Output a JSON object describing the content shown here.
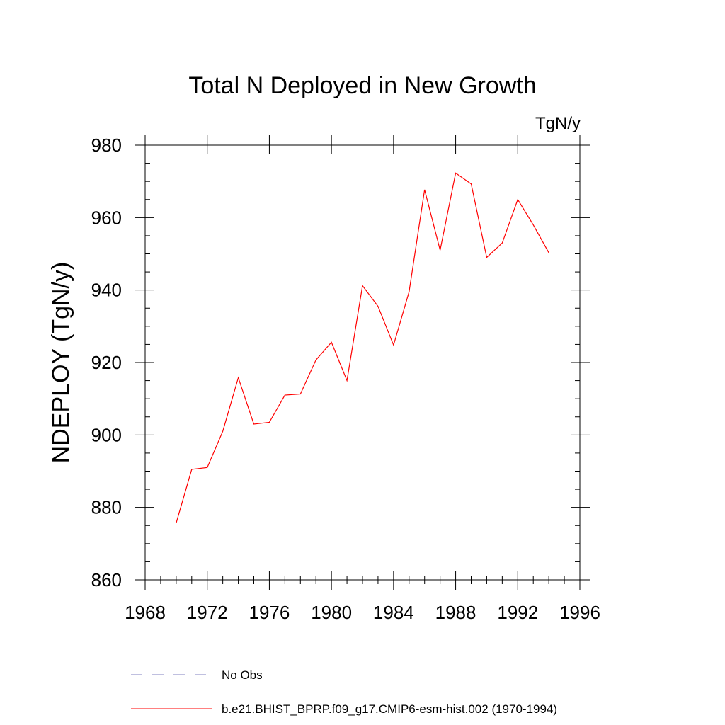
{
  "chart_data": {
    "type": "line",
    "title": "Total N Deployed in New Growth",
    "units": "TgN/y",
    "xlabel": "",
    "ylabel": "NDEPLOY  (TgN/y)",
    "xlim": [
      1968,
      1996
    ],
    "ylim": [
      860,
      980
    ],
    "xticks": [
      1968,
      1972,
      1976,
      1980,
      1984,
      1988,
      1992,
      1996
    ],
    "yticks": [
      860,
      880,
      900,
      920,
      940,
      960,
      980
    ],
    "series": [
      {
        "name": "b.e21.BHIST_BPRP.f09_g17.CMIP6-esm-hist.002 (1970-1994)",
        "color": "#ff0000",
        "dash": "solid",
        "x": [
          1970,
          1971,
          1972,
          1973,
          1974,
          1975,
          1976,
          1977,
          1978,
          1979,
          1980,
          1981,
          1982,
          1983,
          1984,
          1985,
          1986,
          1987,
          1988,
          1989,
          1990,
          1991,
          1992,
          1993,
          1994
        ],
        "y": [
          875.7,
          890.5,
          891.0,
          901.0,
          915.8,
          903.0,
          903.5,
          911.0,
          911.3,
          920.7,
          925.6,
          915.0,
          941.2,
          935.5,
          924.8,
          939.5,
          967.7,
          951.0,
          972.3,
          969.3,
          949.0,
          953.0,
          965.0,
          958.0,
          950.3
        ]
      }
    ],
    "legend": [
      {
        "label": "No Obs",
        "color": "#8080c0",
        "dash": "dashed"
      },
      {
        "label": "b.e21.BHIST_BPRP.f09_g17.CMIP6-esm-hist.002 (1970-1994)",
        "color": "#ff0000",
        "dash": "solid"
      }
    ],
    "legend_position": "bottom"
  }
}
